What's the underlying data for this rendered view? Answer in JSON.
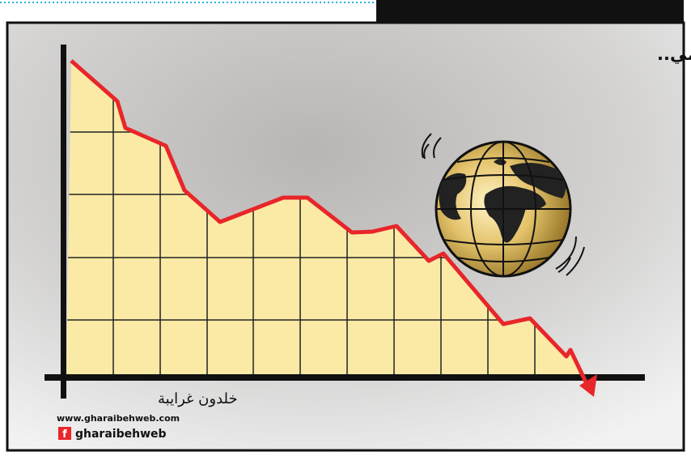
{
  "cartoon": {
    "title": "الاقتصاد العالمي..",
    "signature": "خلدون غرايبة",
    "website": "www.gharaibehweb.com",
    "facebook_icon": "f",
    "facebook": "gharaibehweb"
  }
}
